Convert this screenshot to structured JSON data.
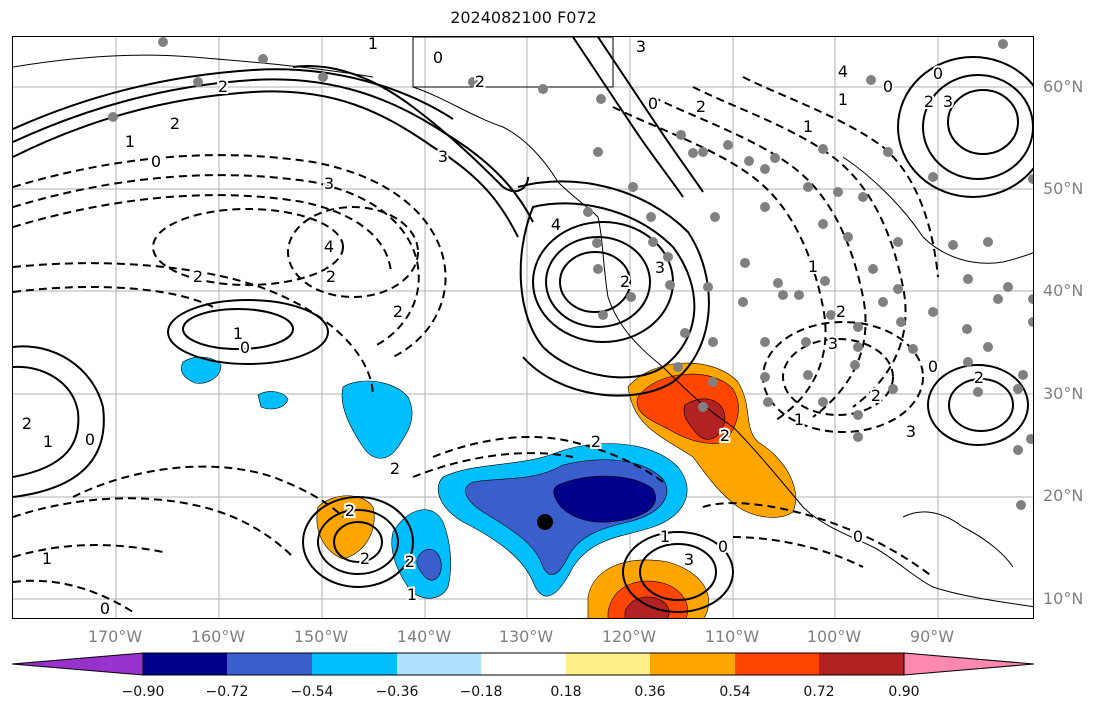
{
  "title": "2024082100 F072",
  "lat_labels": [
    "60°N",
    "50°N",
    "40°N",
    "30°N",
    "20°N",
    "10°N"
  ],
  "lon_labels": [
    "170°W",
    "160°W",
    "150°W",
    "140°W",
    "130°W",
    "120°W",
    "110°W",
    "100°W",
    "90°W"
  ],
  "colorbar": {
    "ticks": [
      "−0.90",
      "−0.72",
      "−0.54",
      "−0.36",
      "−0.18",
      "0.18",
      "0.36",
      "0.54",
      "0.72",
      "0.90"
    ],
    "colors": [
      "#9932cc",
      "#00008b",
      "#3a5fcd",
      "#00bfff",
      "#b0e2ff",
      "#ffffff",
      "#fff08a",
      "#ffa500",
      "#ff4500",
      "#b22222",
      "#ff88b0"
    ]
  },
  "contour_labels": [
    "0",
    "2",
    "3",
    "4",
    "3",
    "0",
    "2",
    "1",
    "2",
    "3",
    "4",
    "2",
    "2",
    "1",
    "0",
    "1",
    "2",
    "2",
    "1",
    "0",
    "2",
    "2",
    "2",
    "0",
    "1",
    "2",
    "0",
    "2",
    "1",
    "0",
    "3",
    "2",
    "1",
    "0",
    "3",
    "2",
    "2",
    "3",
    "2",
    "1",
    "3",
    "2",
    "0",
    "0",
    "1",
    "1",
    "2",
    "3",
    "2",
    "0",
    "1",
    "4"
  ],
  "colors": {
    "axis_label": "#808080",
    "gridline": "#b0b0b0",
    "station_dot": "#808080"
  }
}
